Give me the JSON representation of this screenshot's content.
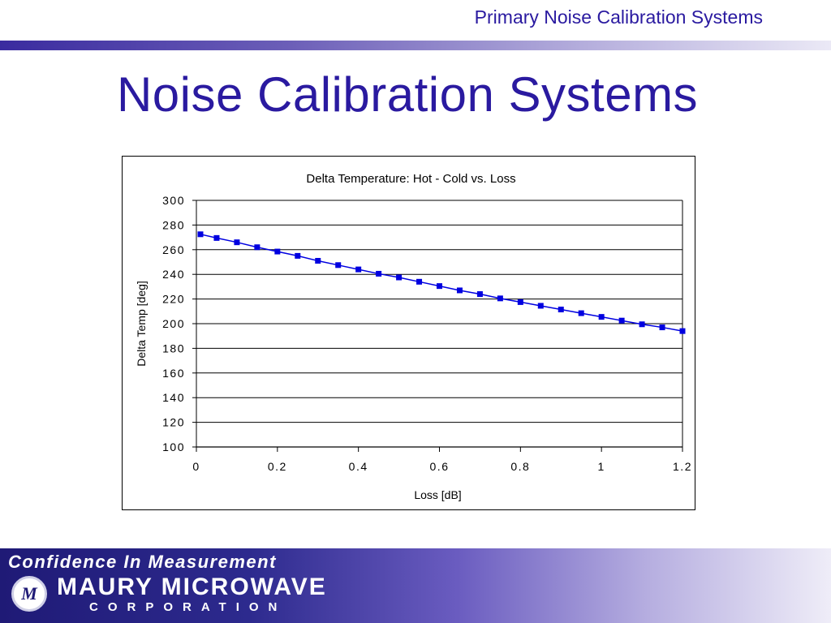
{
  "header": {
    "section": "Primary Noise Calibration Systems"
  },
  "slide": {
    "title": "Noise Calibration Systems"
  },
  "footer": {
    "tagline": "Confidence In Measurement",
    "company": "MAURY MICROWAVE",
    "subtitle": "CORPORATION",
    "logo_mark": "M"
  },
  "colors": {
    "title": "#2a1aa0",
    "series": "#0000e0",
    "footer_dark": "#1f1a76"
  },
  "chart_data": {
    "type": "line",
    "title": "Delta Temperature: Hot - Cold vs. Loss",
    "xlabel": "Loss [dB]",
    "ylabel": "Delta Temp [deg]",
    "xlim": [
      0,
      1.2
    ],
    "ylim": [
      100,
      300
    ],
    "xticks": [
      "0",
      "0.2",
      "0.4",
      "0.6",
      "0.8",
      "1",
      "1.2"
    ],
    "yticks": [
      "100",
      "120",
      "140",
      "160",
      "180",
      "200",
      "220",
      "240",
      "260",
      "280",
      "300"
    ],
    "grid": "horizontal",
    "legend": "none",
    "marker": "square",
    "series": [
      {
        "x": [
          0.01,
          0.05,
          0.1,
          0.15,
          0.2,
          0.25,
          0.3,
          0.35,
          0.4,
          0.45,
          0.5,
          0.55,
          0.6,
          0.65,
          0.7,
          0.75,
          0.8,
          0.85,
          0.9,
          0.95,
          1.0,
          1.05,
          1.1,
          1.15,
          1.2
        ],
        "values": [
          272.5,
          269.5,
          266,
          262,
          258.5,
          255,
          251,
          247.5,
          244,
          240.5,
          237.5,
          234,
          230.5,
          227,
          224,
          220.5,
          217.5,
          214.5,
          211.5,
          208.5,
          205.5,
          202.5,
          199.5,
          197,
          194
        ]
      }
    ]
  }
}
